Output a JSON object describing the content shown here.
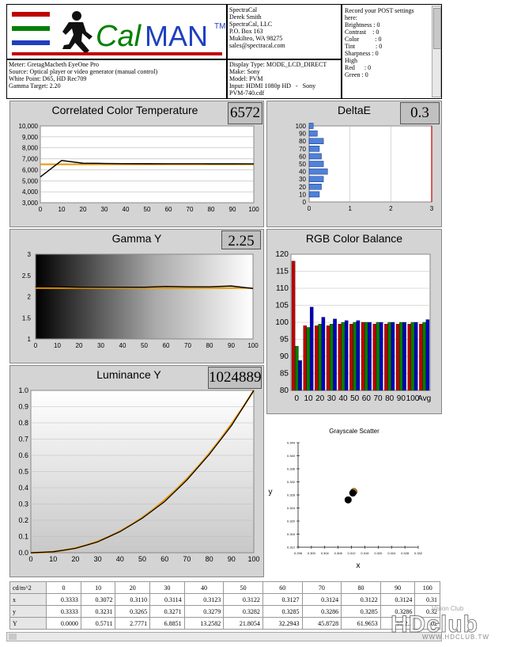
{
  "logo": {
    "text_cal": "Cal",
    "text_man": "MAN",
    "tm": "TM"
  },
  "company": [
    "SpectraCal",
    "Derek Smith",
    "SpectraCal, LLC",
    "P.O. Box 163",
    "Mukilteo, WA 98275",
    "sales@spectracal.com"
  ],
  "settings": {
    "lines": [
      "Record your POST settings",
      "here:",
      "",
      "Brightness : 0",
      "Contrast    : 0",
      "Color          : 0",
      "Tint             : 0",
      "Sharpness : 0",
      "",
      "High",
      "Red      : 0",
      "Green : 0"
    ]
  },
  "meter_info": [
    "Meter: GretagMacbeth EyeOne Pro",
    "Source: Optical player or video generator (manual control)",
    "White Point: D65, HD Rec709",
    "Gamma Target: 2.20"
  ],
  "display_info": [
    "Display Type: MODE_LCD_DIRECT",
    "Make: Sony",
    "Model: PVM",
    "Input: HDMI 1080p HD   -   Sony",
    "PVM-740.cdf"
  ],
  "cct": {
    "title": "Correlated Color Temperature",
    "value": "6572",
    "yticks": [
      "10,000",
      "9,000",
      "8,000",
      "7,000",
      "6,000",
      "5,000",
      "4,000",
      "3,000"
    ],
    "xticks": [
      "0",
      "10",
      "20",
      "30",
      "40",
      "50",
      "60",
      "70",
      "80",
      "90",
      "100"
    ]
  },
  "deltae": {
    "title": "DeltaE",
    "value": "0.3",
    "yticks": [
      "100",
      "90",
      "80",
      "70",
      "60",
      "50",
      "40",
      "30",
      "20",
      "10",
      "0"
    ],
    "xticks": [
      "0",
      "1",
      "2",
      "3"
    ]
  },
  "gamma": {
    "title": "Gamma Y",
    "value": "2.25",
    "yticks": [
      "3",
      "2.5",
      "2",
      "1.5",
      "1"
    ],
    "xticks": [
      "0",
      "10",
      "20",
      "30",
      "40",
      "50",
      "60",
      "70",
      "80",
      "90",
      "100"
    ]
  },
  "rgb": {
    "title": "RGB Color Balance",
    "yticks": [
      "120",
      "115",
      "110",
      "105",
      "100",
      "95",
      "90",
      "85",
      "80"
    ],
    "xticks": [
      "0",
      "10",
      "20",
      "30",
      "40",
      "50",
      "60",
      "70",
      "80",
      "90",
      "100",
      "Avg"
    ]
  },
  "luminance": {
    "title": "Luminance Y",
    "value": "1024889",
    "yticks": [
      "1.0",
      "0.9",
      "0.8",
      "0.7",
      "0.6",
      "0.5",
      "0.4",
      "0.3",
      "0.2",
      "0.1",
      "0.0"
    ],
    "xticks": [
      "0",
      "10",
      "20",
      "30",
      "40",
      "50",
      "60",
      "70",
      "80",
      "90",
      "100"
    ]
  },
  "scatter": {
    "title": "Grayscale Scatter",
    "xlabel": "x",
    "ylabel": "y",
    "yticks": [
      "0.344",
      "0.340",
      "0.336",
      "0.332",
      "0.328",
      "0.324",
      "0.320",
      "0.316",
      "0.312"
    ],
    "xticks": [
      "0.296",
      "0.300",
      "0.304",
      "0.308",
      "0.312",
      "0.316",
      "0.320",
      "0.324",
      "0.328",
      "0.332"
    ]
  },
  "table": {
    "corner": "cd/m^2",
    "columns": [
      "0",
      "10",
      "20",
      "30",
      "40",
      "50",
      "60",
      "70",
      "80",
      "90",
      "100"
    ],
    "rows": [
      {
        "label": "x",
        "values": [
          "0.3333",
          "0.3072",
          "0.3110",
          "0.3114",
          "0.3123",
          "0.3122",
          "0.3127",
          "0.3124",
          "0.3122",
          "0.3124",
          "0.31"
        ]
      },
      {
        "label": "y",
        "values": [
          "0.3333",
          "0.3231",
          "0.3265",
          "0.3271",
          "0.3279",
          "0.3282",
          "0.3285",
          "0.3286",
          "0.3285",
          "0.3286",
          "0.32"
        ]
      },
      {
        "label": "Y",
        "values": [
          "0.0000",
          "0.5711",
          "2.7771",
          "6.8851",
          "13.2582",
          "21.8054",
          "32.2943",
          "45.8728",
          "61.9653",
          "80.2...",
          "102"
        ]
      }
    ]
  },
  "watermark": {
    "brand": "HDclub",
    "url": "WWW.HDCLUB.TW",
    "tagline": "Vision Club"
  },
  "chart_data": [
    {
      "type": "line",
      "title": "Correlated Color Temperature",
      "x": [
        0,
        10,
        20,
        30,
        40,
        50,
        60,
        70,
        80,
        90,
        100
      ],
      "series": [
        {
          "values": [
            5350,
            6850,
            6600,
            6580,
            6560,
            6555,
            6550,
            6550,
            6545,
            6545,
            6540
          ]
        }
      ],
      "target": 6500,
      "ylim": [
        3000,
        10000
      ],
      "xlim": [
        0,
        100
      ]
    },
    {
      "type": "bar",
      "title": "DeltaE",
      "orientation": "horizontal",
      "categories": [
        0,
        10,
        20,
        30,
        40,
        50,
        60,
        70,
        80,
        90,
        100
      ],
      "values": [
        0,
        0.25,
        0.3,
        0.35,
        0.45,
        0.35,
        0.3,
        0.25,
        0.35,
        0.2,
        0.1
      ],
      "xlim": [
        0,
        3
      ],
      "ylim": [
        0,
        100
      ]
    },
    {
      "type": "line",
      "title": "Gamma Y",
      "x": [
        10,
        20,
        30,
        40,
        50,
        60,
        70,
        80,
        90,
        100
      ],
      "series": [
        {
          "values": [
            2.23,
            2.22,
            2.22,
            2.22,
            2.22,
            2.24,
            2.23,
            2.23,
            2.25,
            2.19
          ]
        }
      ],
      "target": 2.2,
      "ylim": [
        1,
        3
      ],
      "xlim": [
        0,
        100
      ]
    },
    {
      "type": "bar",
      "title": "RGB Color Balance",
      "categories": [
        "0",
        "10",
        "20",
        "30",
        "40",
        "50",
        "60",
        "70",
        "80",
        "90",
        "100",
        "Avg"
      ],
      "series": [
        {
          "color": "#c00000",
          "values": [
            118,
            99,
            99,
            99,
            99.5,
            99.5,
            100,
            99.5,
            99.5,
            99.5,
            99.5,
            99.5
          ]
        },
        {
          "color": "#008000",
          "values": [
            93,
            98.5,
            99.5,
            99.5,
            100,
            100,
            100,
            100,
            100,
            100,
            100,
            100
          ]
        },
        {
          "color": "#0000c0",
          "values": [
            88.8,
            104.5,
            101.5,
            101,
            100.5,
            100.5,
            100,
            100,
            100,
            100,
            100,
            100.8
          ]
        }
      ],
      "ylim": [
        80,
        120
      ]
    },
    {
      "type": "line",
      "title": "Luminance Y",
      "x": [
        0,
        10,
        20,
        30,
        40,
        50,
        60,
        70,
        80,
        90,
        100
      ],
      "series": [
        {
          "values": [
            0,
            0.006,
            0.027,
            0.067,
            0.13,
            0.213,
            0.315,
            0.448,
            0.605,
            0.783,
            1.0
          ]
        }
      ],
      "ylim": [
        0,
        1
      ],
      "xlim": [
        0,
        100
      ]
    },
    {
      "type": "scatter",
      "title": "Grayscale Scatter",
      "xlabel": "x",
      "ylabel": "y",
      "points": [
        {
          "x": 0.3127,
          "y": 0.329,
          "color": "#e69500"
        },
        {
          "x": 0.3124,
          "y": 0.3286,
          "color": "#000000"
        },
        {
          "x": 0.311,
          "y": 0.3265,
          "color": "#000000"
        }
      ],
      "xlim": [
        0.296,
        0.332
      ],
      "ylim": [
        0.312,
        0.344
      ]
    }
  ]
}
